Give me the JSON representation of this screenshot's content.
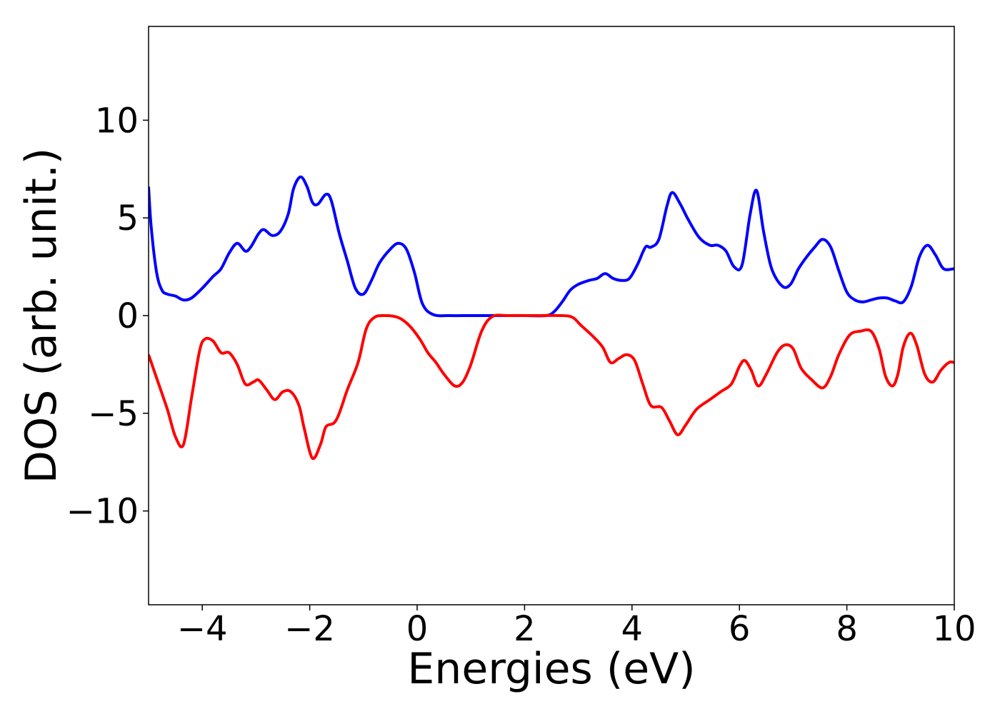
{
  "chart_data": {
    "type": "line",
    "title": "",
    "xlabel": "Energies (eV)",
    "ylabel": "DOS (arb. unit.)",
    "xlim": [
      -5,
      10
    ],
    "ylim": [
      -14.8,
      14.8
    ],
    "x_ticks": [
      -4,
      -2,
      0,
      2,
      4,
      6,
      8,
      10
    ],
    "x_tick_labels": [
      "−4",
      "−2",
      "0",
      "2",
      "4",
      "6",
      "8",
      "10"
    ],
    "y_ticks": [
      -10,
      -5,
      0,
      5,
      10
    ],
    "y_tick_labels": [
      "−10",
      "−5",
      "0",
      "5",
      "10"
    ],
    "grid": false,
    "series": [
      {
        "color": "#0000ff",
        "points": [
          [
            -5.0,
            6.6
          ],
          [
            -4.95,
            4.5
          ],
          [
            -4.85,
            2.2
          ],
          [
            -4.75,
            1.3
          ],
          [
            -4.65,
            1.1
          ],
          [
            -4.5,
            1.0
          ],
          [
            -4.35,
            0.8
          ],
          [
            -4.2,
            0.9
          ],
          [
            -4.0,
            1.4
          ],
          [
            -3.8,
            2.0
          ],
          [
            -3.65,
            2.4
          ],
          [
            -3.5,
            3.2
          ],
          [
            -3.35,
            3.7
          ],
          [
            -3.2,
            3.3
          ],
          [
            -3.1,
            3.5
          ],
          [
            -2.95,
            4.2
          ],
          [
            -2.85,
            4.4
          ],
          [
            -2.7,
            4.1
          ],
          [
            -2.55,
            4.3
          ],
          [
            -2.4,
            5.2
          ],
          [
            -2.3,
            6.5
          ],
          [
            -2.17,
            7.1
          ],
          [
            -2.05,
            6.6
          ],
          [
            -1.95,
            5.8
          ],
          [
            -1.85,
            5.7
          ],
          [
            -1.7,
            6.2
          ],
          [
            -1.6,
            5.9
          ],
          [
            -1.45,
            4.2
          ],
          [
            -1.3,
            2.8
          ],
          [
            -1.15,
            1.4
          ],
          [
            -1.0,
            1.1
          ],
          [
            -0.85,
            1.8
          ],
          [
            -0.7,
            2.7
          ],
          [
            -0.5,
            3.4
          ],
          [
            -0.35,
            3.7
          ],
          [
            -0.2,
            3.4
          ],
          [
            -0.05,
            2.2
          ],
          [
            0.1,
            0.6
          ],
          [
            0.3,
            0.05
          ],
          [
            0.6,
            0.0
          ],
          [
            1.0,
            0.0
          ],
          [
            1.5,
            0.0
          ],
          [
            2.0,
            0.0
          ],
          [
            2.4,
            0.0
          ],
          [
            2.55,
            0.2
          ],
          [
            2.7,
            0.7
          ],
          [
            2.85,
            1.3
          ],
          [
            3.0,
            1.6
          ],
          [
            3.2,
            1.8
          ],
          [
            3.35,
            1.9
          ],
          [
            3.5,
            2.15
          ],
          [
            3.65,
            1.9
          ],
          [
            3.8,
            1.8
          ],
          [
            3.95,
            1.9
          ],
          [
            4.1,
            2.6
          ],
          [
            4.25,
            3.5
          ],
          [
            4.35,
            3.5
          ],
          [
            4.5,
            3.9
          ],
          [
            4.65,
            5.6
          ],
          [
            4.75,
            6.3
          ],
          [
            4.9,
            5.7
          ],
          [
            5.05,
            4.9
          ],
          [
            5.25,
            4.0
          ],
          [
            5.45,
            3.6
          ],
          [
            5.6,
            3.6
          ],
          [
            5.75,
            3.3
          ],
          [
            5.9,
            2.5
          ],
          [
            6.05,
            2.6
          ],
          [
            6.2,
            5.2
          ],
          [
            6.32,
            6.4
          ],
          [
            6.45,
            4.3
          ],
          [
            6.6,
            2.4
          ],
          [
            6.8,
            1.5
          ],
          [
            6.95,
            1.6
          ],
          [
            7.1,
            2.4
          ],
          [
            7.25,
            3.0
          ],
          [
            7.4,
            3.5
          ],
          [
            7.55,
            3.9
          ],
          [
            7.7,
            3.5
          ],
          [
            7.85,
            2.3
          ],
          [
            8.0,
            1.2
          ],
          [
            8.15,
            0.8
          ],
          [
            8.3,
            0.7
          ],
          [
            8.45,
            0.8
          ],
          [
            8.6,
            0.9
          ],
          [
            8.75,
            0.9
          ],
          [
            8.9,
            0.75
          ],
          [
            9.05,
            0.7
          ],
          [
            9.2,
            1.5
          ],
          [
            9.35,
            3.0
          ],
          [
            9.5,
            3.6
          ],
          [
            9.65,
            3.1
          ],
          [
            9.8,
            2.4
          ],
          [
            10.0,
            2.4
          ]
        ]
      },
      {
        "color": "#ff0000",
        "points": [
          [
            -5.0,
            -2.0
          ],
          [
            -4.85,
            -3.2
          ],
          [
            -4.65,
            -4.8
          ],
          [
            -4.5,
            -6.2
          ],
          [
            -4.35,
            -6.6
          ],
          [
            -4.2,
            -4.2
          ],
          [
            -4.05,
            -1.8
          ],
          [
            -3.95,
            -1.2
          ],
          [
            -3.8,
            -1.3
          ],
          [
            -3.65,
            -1.9
          ],
          [
            -3.5,
            -1.9
          ],
          [
            -3.35,
            -2.5
          ],
          [
            -3.2,
            -3.5
          ],
          [
            -3.05,
            -3.4
          ],
          [
            -2.95,
            -3.3
          ],
          [
            -2.8,
            -3.8
          ],
          [
            -2.65,
            -4.3
          ],
          [
            -2.5,
            -3.9
          ],
          [
            -2.35,
            -3.9
          ],
          [
            -2.2,
            -4.6
          ],
          [
            -2.1,
            -5.8
          ],
          [
            -1.95,
            -7.3
          ],
          [
            -1.8,
            -6.6
          ],
          [
            -1.7,
            -5.7
          ],
          [
            -1.55,
            -5.5
          ],
          [
            -1.45,
            -5.0
          ],
          [
            -1.3,
            -3.8
          ],
          [
            -1.1,
            -2.4
          ],
          [
            -0.95,
            -0.7
          ],
          [
            -0.8,
            -0.1
          ],
          [
            -0.6,
            0.0
          ],
          [
            -0.35,
            -0.1
          ],
          [
            -0.15,
            -0.5
          ],
          [
            0.05,
            -1.2
          ],
          [
            0.2,
            -1.9
          ],
          [
            0.35,
            -2.4
          ],
          [
            0.5,
            -3.0
          ],
          [
            0.7,
            -3.6
          ],
          [
            0.85,
            -3.4
          ],
          [
            1.0,
            -2.5
          ],
          [
            1.2,
            -0.8
          ],
          [
            1.4,
            -0.05
          ],
          [
            1.7,
            0.0
          ],
          [
            2.2,
            0.0
          ],
          [
            2.7,
            0.0
          ],
          [
            2.9,
            -0.1
          ],
          [
            3.05,
            -0.5
          ],
          [
            3.25,
            -1.0
          ],
          [
            3.45,
            -1.6
          ],
          [
            3.6,
            -2.4
          ],
          [
            3.75,
            -2.2
          ],
          [
            3.9,
            -2.0
          ],
          [
            4.05,
            -2.3
          ],
          [
            4.2,
            -3.5
          ],
          [
            4.35,
            -4.6
          ],
          [
            4.55,
            -4.7
          ],
          [
            4.7,
            -5.4
          ],
          [
            4.85,
            -6.1
          ],
          [
            5.0,
            -5.6
          ],
          [
            5.2,
            -4.8
          ],
          [
            5.45,
            -4.3
          ],
          [
            5.65,
            -3.9
          ],
          [
            5.85,
            -3.5
          ],
          [
            6.0,
            -2.6
          ],
          [
            6.1,
            -2.3
          ],
          [
            6.22,
            -2.8
          ],
          [
            6.35,
            -3.6
          ],
          [
            6.5,
            -3.0
          ],
          [
            6.7,
            -1.9
          ],
          [
            6.85,
            -1.5
          ],
          [
            7.0,
            -1.7
          ],
          [
            7.15,
            -2.7
          ],
          [
            7.35,
            -3.3
          ],
          [
            7.55,
            -3.7
          ],
          [
            7.7,
            -3.1
          ],
          [
            7.85,
            -2.0
          ],
          [
            8.05,
            -1.0
          ],
          [
            8.25,
            -0.8
          ],
          [
            8.45,
            -0.8
          ],
          [
            8.6,
            -1.7
          ],
          [
            8.72,
            -3.1
          ],
          [
            8.85,
            -3.6
          ],
          [
            8.95,
            -3.0
          ],
          [
            9.05,
            -1.6
          ],
          [
            9.18,
            -0.9
          ],
          [
            9.3,
            -1.5
          ],
          [
            9.45,
            -3.0
          ],
          [
            9.6,
            -3.4
          ],
          [
            9.75,
            -2.8
          ],
          [
            9.9,
            -2.4
          ],
          [
            10.0,
            -2.4
          ]
        ]
      }
    ]
  }
}
